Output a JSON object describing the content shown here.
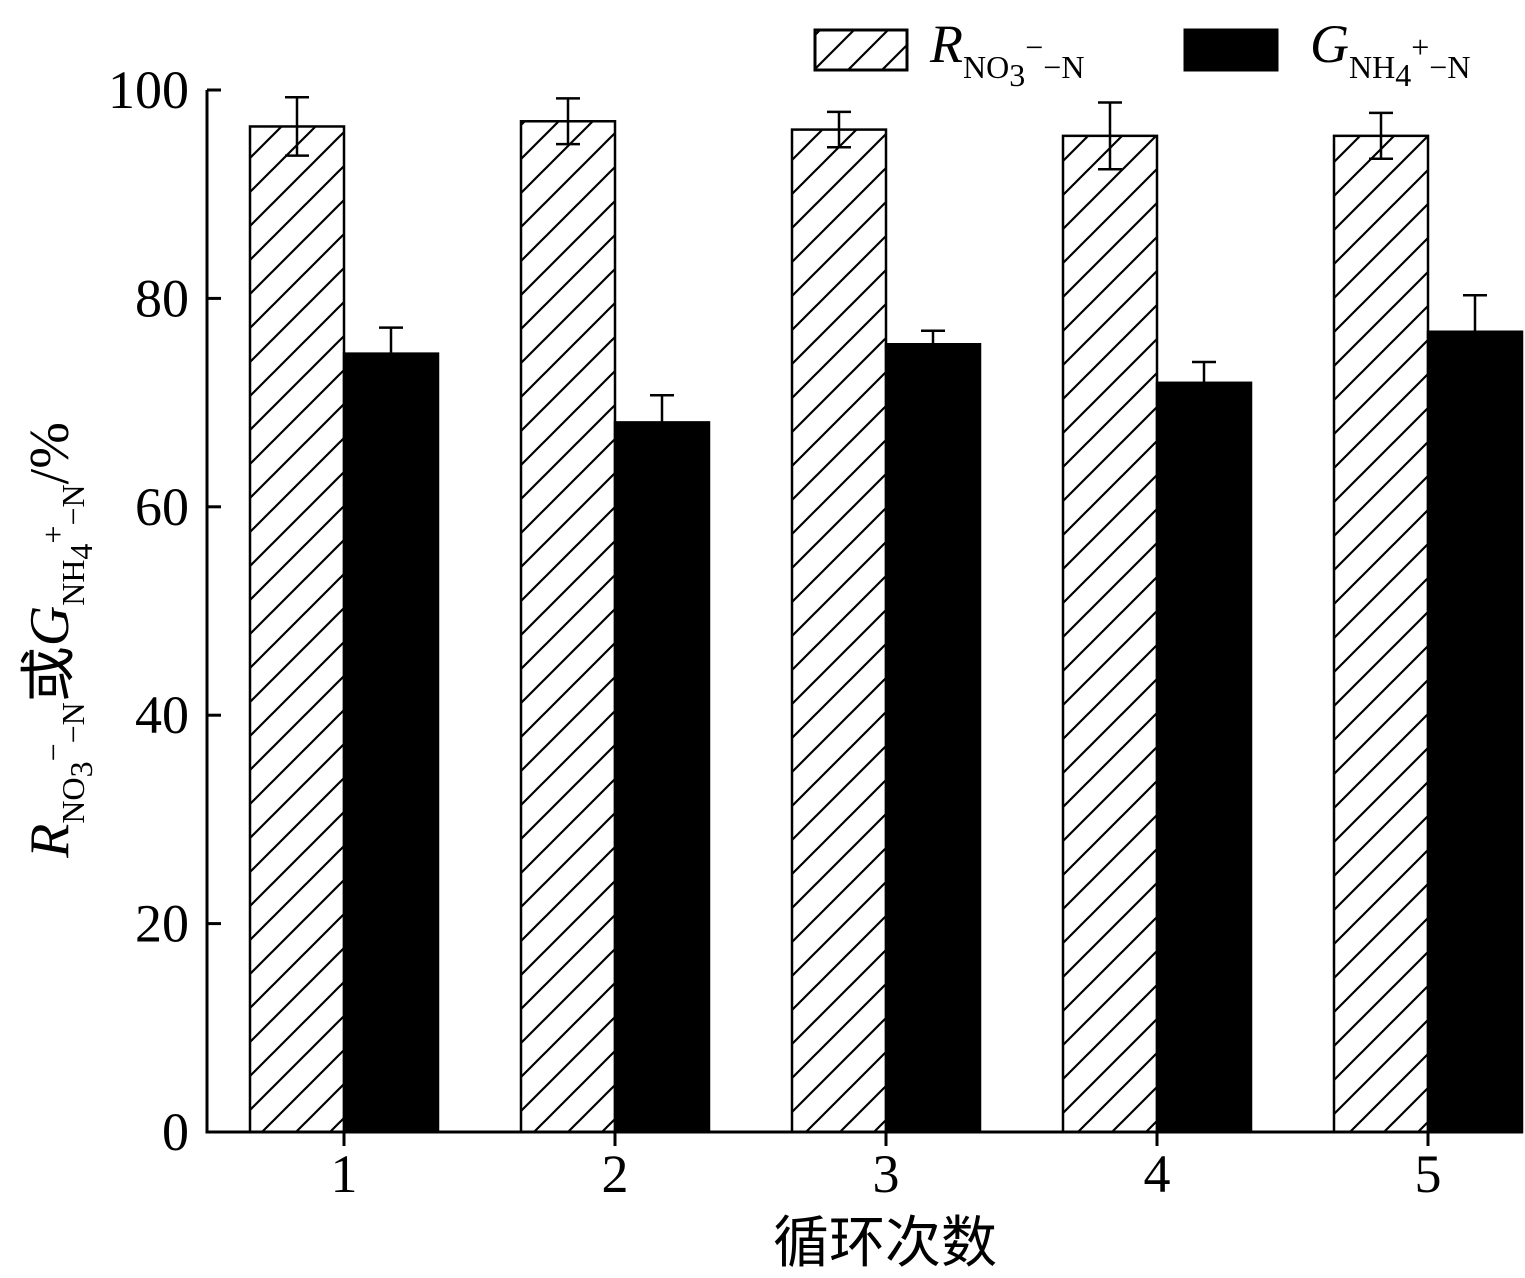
{
  "chart_data": {
    "type": "bar",
    "categories": [
      "1",
      "2",
      "3",
      "4",
      "5"
    ],
    "series": [
      {
        "name_main": "R",
        "name_sub": "NO",
        "name_sub2": "3",
        "name_sup": "−",
        "name_tail": "−N",
        "pattern": "hatched",
        "values": [
          96.5,
          97.0,
          96.2,
          95.6,
          95.6
        ],
        "errors": [
          2.8,
          2.2,
          1.7,
          3.2,
          2.2
        ]
      },
      {
        "name_main": "G",
        "name_sub": "NH",
        "name_sub2": "4",
        "name_sup": "+",
        "name_tail": "−N",
        "pattern": "solid",
        "values": [
          74.7,
          68.1,
          75.6,
          71.9,
          76.8
        ],
        "errors": [
          2.5,
          2.6,
          1.3,
          2.0,
          3.5
        ]
      }
    ],
    "xlabel": "循环次数",
    "ylabel": {
      "r_main": "R",
      "r_sub": "NO",
      "r_sub2": "3",
      "r_sup": "−",
      "r_tail": "−N",
      "connector": "或",
      "g_main": "G",
      "g_sub": "NH",
      "g_sub2": "4",
      "g_sup": "+",
      "g_tail": "−N",
      "unit": "/%"
    },
    "ylim": [
      0,
      100
    ],
    "yticks": [
      "0",
      "20",
      "40",
      "60",
      "80",
      "100"
    ],
    "grid": false,
    "legend_position": "top-right",
    "colors": {
      "bar_fill_solid": "#000000",
      "bar_fill_hatched": "#ffffff",
      "stroke": "#000000"
    }
  }
}
